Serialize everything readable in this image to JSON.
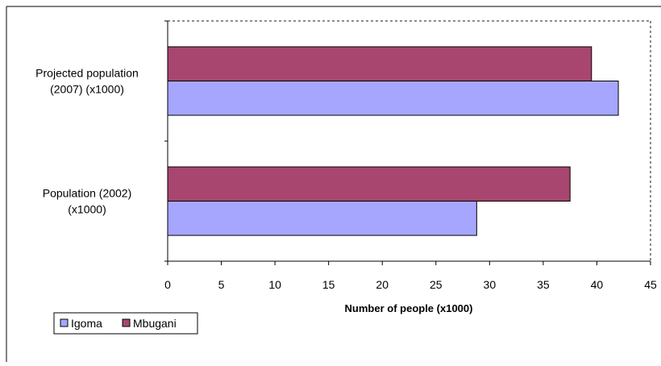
{
  "chart_data": {
    "type": "bar",
    "orientation": "horizontal",
    "categories": [
      [
        "Projected population",
        "(2007) (x1000)"
      ],
      [
        "Population (2002)",
        "(x1000)"
      ]
    ],
    "series": [
      {
        "name": "Igoma",
        "values": [
          42,
          28.8
        ],
        "color": "#a6a6ff"
      },
      {
        "name": "Mbugani",
        "values": [
          39.5,
          37.5
        ],
        "color": "#a8466f"
      }
    ],
    "xlabel": "Number of people (x1000)",
    "xlim": [
      0,
      45
    ],
    "xticks": [
      0,
      5,
      10,
      15,
      20,
      25,
      30,
      35,
      40,
      45
    ],
    "grid": false,
    "legend_position": "bottom-left"
  }
}
